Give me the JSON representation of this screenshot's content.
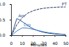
{
  "chart_data": {
    "type": "line",
    "x_label": "Minutes",
    "x": [
      0,
      5,
      10,
      15,
      20,
      25,
      30,
      35,
      40,
      45,
      50
    ],
    "xlim": [
      0,
      50
    ],
    "xticks": [
      0,
      10,
      20,
      30,
      40,
      50
    ],
    "ylim": [
      0,
      1
    ],
    "yticks": [
      0,
      0.5,
      1
    ],
    "grid": false,
    "series": [
      {
        "name": "PT",
        "color": "#1f2f5f",
        "line_style": "dashed",
        "values": [
          0,
          0.35,
          0.58,
          0.72,
          0.8,
          0.85,
          0.88,
          0.9,
          0.91,
          0.92,
          0.92
        ]
      },
      {
        "name": "Am",
        "color": "#2a4f8f",
        "line_style": "solid",
        "values": [
          0,
          0.55,
          0.45,
          0.32,
          0.22,
          0.15,
          0.1,
          0.07,
          0.05,
          0.04,
          0.03
        ]
      },
      {
        "name": "Cro",
        "color": "#3f7fbf",
        "line_style": "solid",
        "values": [
          0,
          0.15,
          0.25,
          0.24,
          0.2,
          0.16,
          0.12,
          0.09,
          0.07,
          0.05,
          0.04
        ]
      }
    ]
  }
}
